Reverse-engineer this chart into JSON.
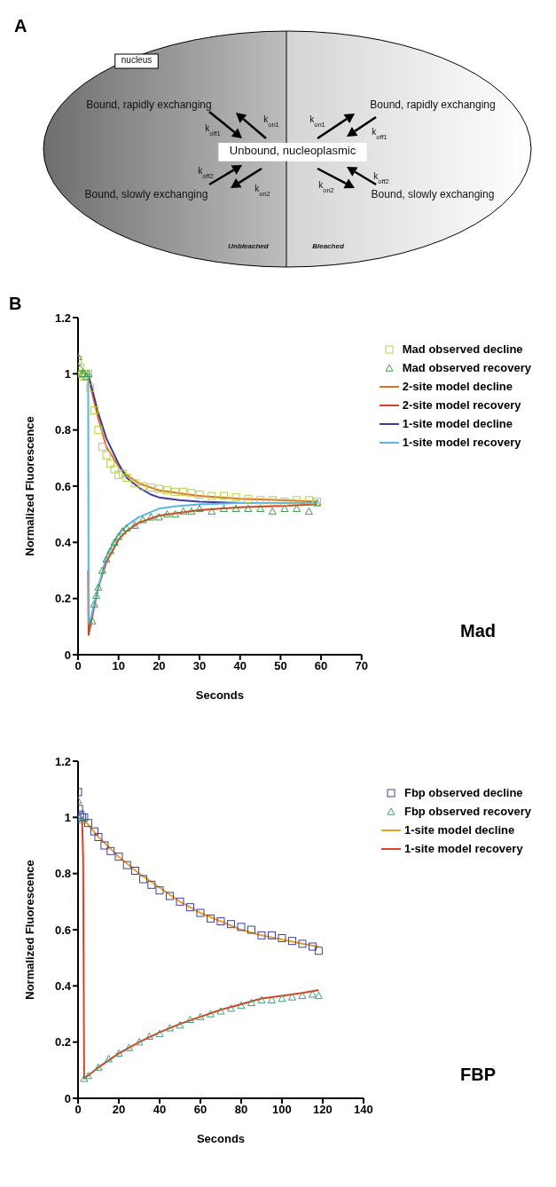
{
  "chart_data": [
    {
      "type": "other",
      "title": "A",
      "annotations": [
        "nucleus",
        "Bound, rapidly exchanging",
        "Bound, rapidly exchanging",
        "Unbound, nucleoplasmic",
        "Bound, slowly exchanging",
        "Bound, slowly exchanging",
        "k$_{on1}$",
        "k$_{off1}$",
        "k$_{off2}$",
        "k$_{on2}$",
        "k$_{on1}$",
        "k$_{off1}$",
        "k$_{off2}$",
        "k$_{on2}$",
        "Unbleached",
        "Bleached"
      ]
    },
    {
      "type": "scatter",
      "title": "B",
      "xlabel": "Seconds",
      "ylabel": "Normalized Fluorescence",
      "annotations": [
        "Mad"
      ],
      "xlim": [
        0,
        70
      ],
      "xticks": [
        0,
        10,
        20,
        30,
        40,
        50,
        60,
        70
      ],
      "ylim": [
        0,
        1.2
      ],
      "yticks": [
        0,
        0.2,
        0.4,
        0.6,
        0.8,
        1,
        1.2
      ],
      "legend": "top right",
      "series": [
        {
          "name": "Mad observed decline",
          "type": "scatter",
          "marker": "square",
          "color": "#b5cf4a",
          "x": [
            0,
            0.5,
            1,
            1.5,
            2,
            2.5,
            3,
            4,
            5,
            6,
            7,
            8,
            9,
            10,
            11,
            12,
            14,
            16,
            18,
            20,
            22,
            24,
            26,
            28,
            30,
            33,
            36,
            39,
            42,
            45,
            48,
            51,
            54,
            57,
            59
          ],
          "values": [
            1.05,
            1.02,
            1.0,
            0.99,
            1.0,
            1.0,
            0.95,
            0.87,
            0.8,
            0.74,
            0.71,
            0.68,
            0.66,
            0.64,
            0.645,
            0.63,
            0.61,
            0.6,
            0.595,
            0.59,
            0.585,
            0.58,
            0.58,
            0.575,
            0.57,
            0.565,
            0.565,
            0.56,
            0.555,
            0.55,
            0.55,
            0.545,
            0.55,
            0.55,
            0.545
          ]
        },
        {
          "name": "Mad observed recovery",
          "type": "scatter",
          "marker": "triangle",
          "color": "#3f9a4a",
          "x": [
            0,
            0.5,
            1,
            1.5,
            2,
            2.5,
            3.5,
            4,
            4.5,
            5,
            6,
            7,
            8,
            9,
            10,
            11,
            12,
            14,
            16,
            18,
            20,
            22,
            24,
            26,
            28,
            30,
            33,
            36,
            39,
            42,
            45,
            48,
            51,
            54,
            57,
            59
          ],
          "values": [
            1.06,
            1.02,
            1.0,
            1.0,
            0.99,
            1.0,
            0.12,
            0.18,
            0.21,
            0.24,
            0.3,
            0.34,
            0.37,
            0.4,
            0.42,
            0.44,
            0.45,
            0.46,
            0.48,
            0.49,
            0.49,
            0.5,
            0.5,
            0.51,
            0.51,
            0.52,
            0.51,
            0.52,
            0.52,
            0.52,
            0.52,
            0.51,
            0.52,
            0.52,
            0.51,
            0.54
          ]
        },
        {
          "name": "2-site model decline",
          "type": "line",
          "marker": "none",
          "color": "#e8701a",
          "x": [
            2.5,
            3,
            5,
            7,
            10,
            12,
            15,
            20,
            25,
            30,
            40,
            50,
            59
          ],
          "values": [
            1.0,
            0.96,
            0.84,
            0.74,
            0.67,
            0.64,
            0.61,
            0.585,
            0.575,
            0.565,
            0.555,
            0.55,
            0.545
          ]
        },
        {
          "name": "2-site model recovery",
          "type": "line",
          "marker": "none",
          "color": "#d9401e",
          "x": [
            2.5,
            2.6,
            3,
            4,
            5,
            7,
            10,
            12,
            15,
            20,
            25,
            30,
            40,
            50,
            59
          ],
          "values": [
            0.3,
            0.07,
            0.1,
            0.17,
            0.24,
            0.33,
            0.41,
            0.44,
            0.47,
            0.495,
            0.505,
            0.515,
            0.525,
            0.53,
            0.535
          ]
        },
        {
          "name": "1-site model decline",
          "type": "line",
          "marker": "none",
          "color": "#3b3b9c",
          "x": [
            2.5,
            5,
            7,
            10,
            12,
            15,
            18,
            20,
            25,
            30,
            40,
            50,
            59
          ],
          "values": [
            1.0,
            0.86,
            0.77,
            0.68,
            0.63,
            0.595,
            0.57,
            0.56,
            0.55,
            0.545,
            0.54,
            0.54,
            0.54
          ]
        },
        {
          "name": "1-site model recovery",
          "type": "line",
          "marker": "none",
          "color": "#5ab4e5",
          "x": [
            2.5,
            2.6,
            3,
            4,
            5,
            7,
            10,
            12,
            15,
            20,
            25,
            30,
            40,
            59
          ],
          "values": [
            1.0,
            0.11,
            0.12,
            0.18,
            0.24,
            0.35,
            0.43,
            0.46,
            0.49,
            0.52,
            0.53,
            0.535,
            0.54,
            0.54
          ]
        }
      ]
    },
    {
      "type": "scatter",
      "xlabel": "Seconds",
      "ylabel": "Normalized Fluorescence",
      "annotations": [
        "FBP"
      ],
      "xlim": [
        0,
        140
      ],
      "xticks": [
        0,
        20,
        40,
        60,
        80,
        100,
        120,
        140
      ],
      "ylim": [
        0,
        1.2
      ],
      "yticks": [
        0,
        0.2,
        0.4,
        0.6,
        0.8,
        1,
        1.2
      ],
      "legend": "top right",
      "series": [
        {
          "name": "Fbp observed decline",
          "type": "scatter",
          "marker": "square",
          "color": "#4040a0",
          "x": [
            0,
            0.5,
            1,
            2,
            3,
            5,
            8,
            10,
            13,
            16,
            20,
            24,
            28,
            32,
            36,
            40,
            45,
            50,
            55,
            60,
            65,
            70,
            75,
            80,
            85,
            90,
            95,
            100,
            105,
            110,
            115,
            118
          ],
          "values": [
            1.09,
            1.03,
            1.01,
            1.0,
            1.0,
            0.98,
            0.95,
            0.93,
            0.9,
            0.88,
            0.86,
            0.83,
            0.81,
            0.78,
            0.76,
            0.74,
            0.72,
            0.7,
            0.68,
            0.66,
            0.64,
            0.63,
            0.62,
            0.61,
            0.6,
            0.58,
            0.58,
            0.57,
            0.56,
            0.55,
            0.54,
            0.525
          ]
        },
        {
          "name": "Fbp observed recovery",
          "type": "scatter",
          "marker": "triangle",
          "color": "#3aa07a",
          "x": [
            0,
            1,
            2,
            3,
            5,
            10,
            15,
            20,
            25,
            30,
            35,
            40,
            45,
            50,
            55,
            60,
            65,
            70,
            75,
            80,
            85,
            90,
            95,
            100,
            105,
            110,
            115,
            118
          ],
          "values": [
            1.06,
            1.0,
            0.99,
            0.07,
            0.08,
            0.11,
            0.14,
            0.16,
            0.18,
            0.2,
            0.22,
            0.23,
            0.25,
            0.26,
            0.28,
            0.29,
            0.3,
            0.31,
            0.32,
            0.33,
            0.34,
            0.35,
            0.35,
            0.355,
            0.36,
            0.365,
            0.37,
            0.365
          ]
        },
        {
          "name": "1-site model decline",
          "type": "line",
          "marker": "none",
          "color": "#f0a020",
          "x": [
            2,
            10,
            20,
            30,
            40,
            50,
            60,
            70,
            80,
            90,
            100,
            110,
            118
          ],
          "values": [
            1.0,
            0.93,
            0.86,
            0.8,
            0.75,
            0.7,
            0.66,
            0.63,
            0.6,
            0.58,
            0.565,
            0.55,
            0.54
          ]
        },
        {
          "name": "1-site model recovery",
          "type": "line",
          "marker": "none",
          "color": "#e04020",
          "x": [
            2,
            2.5,
            2.7,
            2.9,
            3,
            10,
            20,
            30,
            40,
            50,
            60,
            70,
            80,
            90,
            100,
            110,
            118
          ],
          "values": [
            1.0,
            0.85,
            0.53,
            0.22,
            0.07,
            0.11,
            0.16,
            0.2,
            0.235,
            0.265,
            0.29,
            0.315,
            0.335,
            0.355,
            0.365,
            0.375,
            0.385
          ]
        }
      ]
    }
  ]
}
